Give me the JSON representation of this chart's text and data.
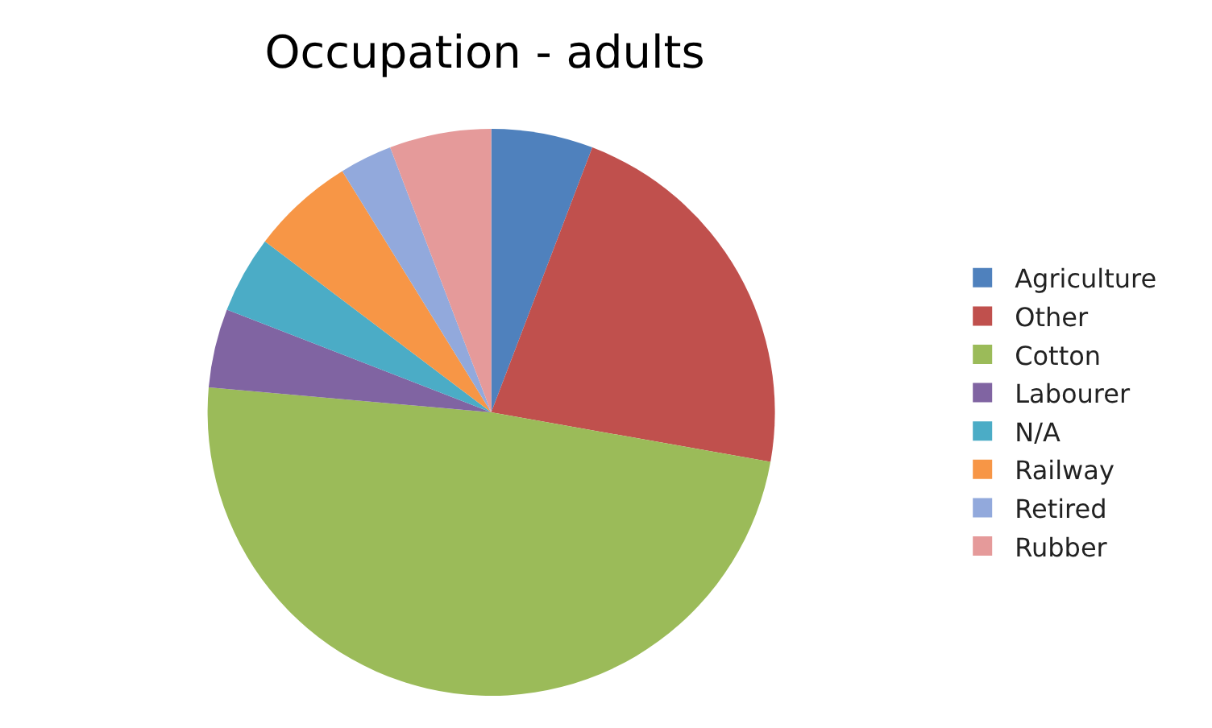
{
  "chart_data": {
    "type": "pie",
    "title": "Occupation - adults",
    "categories": [
      "Agriculture",
      "Other",
      "Cotton",
      "Labourer",
      "N/A",
      "Railway",
      "Retired",
      "Rubber"
    ],
    "values": [
      5.8,
      22.0,
      48.6,
      4.5,
      4.4,
      5.9,
      3.0,
      5.8
    ],
    "colors": [
      "#4f81bd",
      "#c0504d",
      "#9bbb59",
      "#8064a2",
      "#4bacc6",
      "#f79646",
      "#92a9dc",
      "#e59a9a"
    ],
    "legend": "right"
  }
}
